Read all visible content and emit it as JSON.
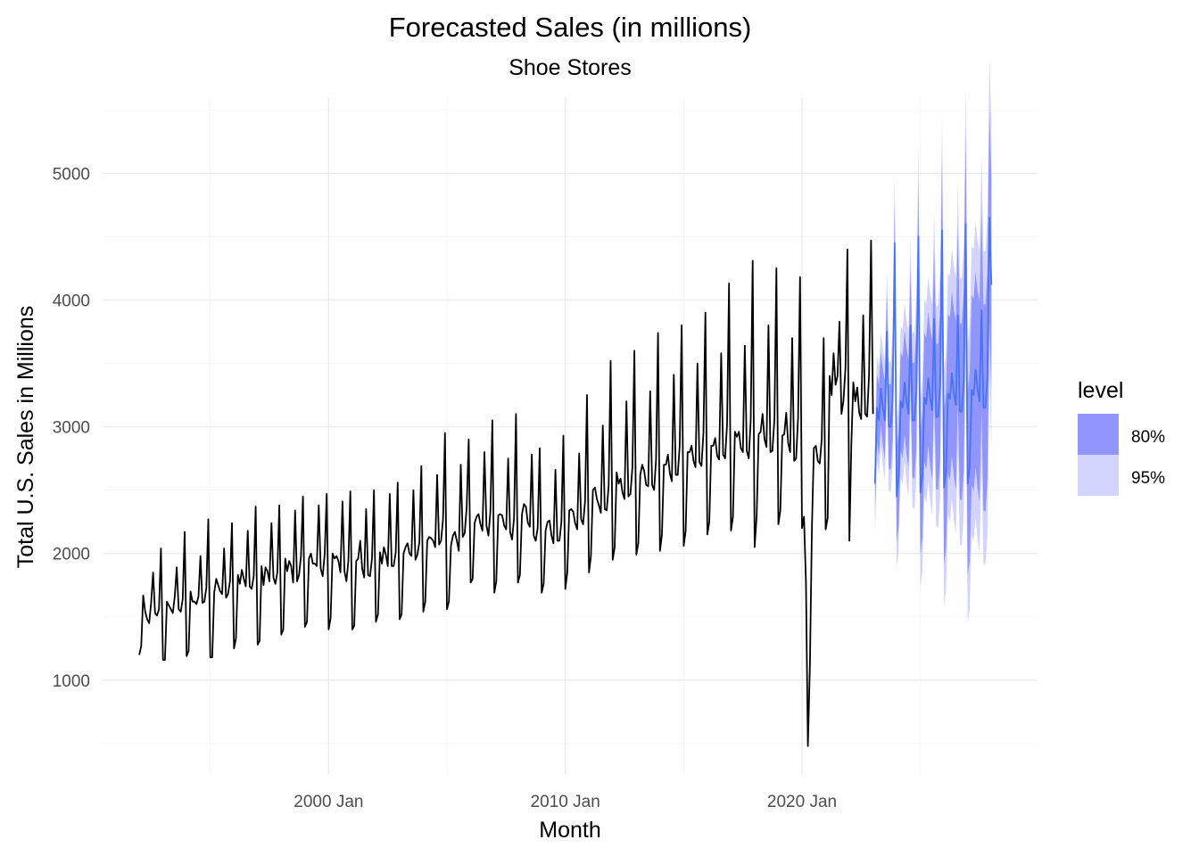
{
  "chart_data": {
    "type": "line",
    "title": "Forecasted Sales (in millions)",
    "subtitle": "Shoe Stores",
    "xlabel": "Month",
    "ylabel": "Total U.S. Sales in Millions",
    "x_ticks": [
      {
        "label": "2000 Jan",
        "year": 2000
      },
      {
        "label": "2010 Jan",
        "year": 2010
      },
      {
        "label": "2020 Jan",
        "year": 2020
      }
    ],
    "y_ticks": [
      1000,
      2000,
      3000,
      4000,
      5000
    ],
    "ylim": [
      260,
      5600
    ],
    "xlim_years": [
      1990.45,
      2029.95
    ],
    "grid": true,
    "legend": {
      "title": "level",
      "position": "right",
      "entries": [
        {
          "label": "80%",
          "color": "#9096fb"
        },
        {
          "label": "95%",
          "color": "#d3d4fd"
        }
      ]
    },
    "colors": {
      "observed": "#000000",
      "forecast_mean": "#4a72f4",
      "band_80": "#9096fb",
      "band_95": "#d3d4fd"
    },
    "observed": {
      "start": "1992 Jan",
      "frequency": "monthly",
      "by_year": [
        {
          "year": 1992,
          "values": [
            1200,
            1270,
            1670,
            1540,
            1480,
            1450,
            1610,
            1850,
            1530,
            1510,
            1560,
            2040
          ]
        },
        {
          "year": 1993,
          "values": [
            1160,
            1160,
            1620,
            1590,
            1560,
            1530,
            1660,
            1890,
            1560,
            1540,
            1640,
            2170
          ]
        },
        {
          "year": 1994,
          "values": [
            1190,
            1230,
            1700,
            1620,
            1620,
            1600,
            1660,
            1980,
            1610,
            1620,
            1730,
            2270
          ]
        },
        {
          "year": 1995,
          "values": [
            1180,
            1180,
            1690,
            1800,
            1750,
            1700,
            1680,
            2040,
            1650,
            1680,
            1780,
            2240
          ]
        },
        {
          "year": 1996,
          "values": [
            1250,
            1330,
            1830,
            1760,
            1870,
            1800,
            1740,
            2180,
            1740,
            1720,
            1820,
            2370
          ]
        },
        {
          "year": 1997,
          "values": [
            1280,
            1310,
            1900,
            1750,
            1890,
            1860,
            1780,
            2240,
            1810,
            1760,
            1850,
            2380
          ]
        },
        {
          "year": 1998,
          "values": [
            1360,
            1400,
            1960,
            1860,
            1940,
            1900,
            1770,
            2340,
            1780,
            1830,
            1980,
            2450
          ]
        },
        {
          "year": 1999,
          "values": [
            1420,
            1460,
            1960,
            2000,
            1920,
            1920,
            1900,
            2380,
            1880,
            1820,
            2000,
            2470
          ]
        },
        {
          "year": 2000,
          "values": [
            1400,
            1490,
            2000,
            1960,
            1980,
            1940,
            1850,
            2410,
            1860,
            1780,
            1940,
            2490
          ]
        },
        {
          "year": 2001,
          "values": [
            1400,
            1430,
            1940,
            1960,
            2100,
            1880,
            1810,
            2350,
            1830,
            1820,
            1960,
            2500
          ]
        },
        {
          "year": 2002,
          "values": [
            1460,
            1520,
            2010,
            1920,
            2050,
            1990,
            1900,
            2470,
            1900,
            1900,
            2010,
            2560
          ]
        },
        {
          "year": 2003,
          "values": [
            1480,
            1520,
            2000,
            2050,
            2080,
            2000,
            1980,
            2500,
            1950,
            1990,
            2090,
            2690
          ]
        },
        {
          "year": 2004,
          "values": [
            1540,
            1620,
            2100,
            2130,
            2120,
            2100,
            2050,
            2620,
            2070,
            2100,
            2270,
            2950
          ]
        },
        {
          "year": 2005,
          "values": [
            1560,
            1620,
            2060,
            2140,
            2170,
            2100,
            2020,
            2700,
            2130,
            2160,
            2360,
            2900
          ]
        },
        {
          "year": 2006,
          "values": [
            1770,
            1800,
            2240,
            2290,
            2310,
            2230,
            2180,
            2800,
            2220,
            2140,
            2330,
            3050
          ]
        },
        {
          "year": 2007,
          "values": [
            1690,
            1780,
            2300,
            2310,
            2300,
            2220,
            2190,
            2750,
            2170,
            2110,
            2280,
            3100
          ]
        },
        {
          "year": 2008,
          "values": [
            1770,
            1830,
            2310,
            2390,
            2370,
            2240,
            2210,
            2780,
            2140,
            2100,
            2200,
            2830
          ]
        },
        {
          "year": 2009,
          "values": [
            1690,
            1760,
            2180,
            2250,
            2260,
            2140,
            2080,
            2660,
            2100,
            2100,
            2250,
            2930
          ]
        },
        {
          "year": 2010,
          "values": [
            1720,
            1850,
            2340,
            2350,
            2330,
            2240,
            2190,
            2790,
            2270,
            2230,
            2410,
            3250
          ]
        },
        {
          "year": 2011,
          "values": [
            1850,
            1980,
            2500,
            2520,
            2430,
            2380,
            2320,
            3010,
            2350,
            2340,
            2540,
            3520
          ]
        },
        {
          "year": 2012,
          "values": [
            1950,
            2050,
            2640,
            2550,
            2590,
            2480,
            2430,
            3200,
            2450,
            2470,
            2680,
            3600
          ]
        },
        {
          "year": 2013,
          "values": [
            1990,
            2080,
            2620,
            2700,
            2650,
            2540,
            2530,
            3280,
            2540,
            2500,
            2740,
            3740
          ]
        },
        {
          "year": 2014,
          "values": [
            2020,
            2150,
            2700,
            2700,
            2780,
            2630,
            2570,
            3410,
            2620,
            2620,
            2850,
            3800
          ]
        },
        {
          "year": 2015,
          "values": [
            2060,
            2180,
            2800,
            2800,
            2850,
            2730,
            2680,
            3500,
            2720,
            2690,
            2950,
            3900
          ]
        },
        {
          "year": 2016,
          "values": [
            2150,
            2250,
            2850,
            2850,
            2910,
            2770,
            2740,
            3580,
            2780,
            2750,
            3020,
            4130
          ]
        },
        {
          "year": 2017,
          "values": [
            2180,
            2290,
            2960,
            2920,
            2960,
            2830,
            2800,
            3640,
            2810,
            2750,
            3050,
            4310
          ]
        },
        {
          "year": 2018,
          "values": [
            2050,
            2300,
            2940,
            2960,
            3100,
            2900,
            2840,
            3800,
            2800,
            2810,
            3060,
            4250
          ]
        },
        {
          "year": 2019,
          "values": [
            2230,
            2340,
            2930,
            2940,
            3110,
            2870,
            2800,
            3700,
            2730,
            2750,
            3070,
            4180
          ]
        },
        {
          "year": 2020,
          "values": [
            2200,
            2290,
            1780,
            480,
            1130,
            2200,
            2830,
            2850,
            2730,
            2710,
            2900,
            3700
          ]
        },
        {
          "year": 2021,
          "values": [
            2190,
            2280,
            3400,
            3250,
            3580,
            3330,
            3400,
            3830,
            3100,
            3200,
            3460,
            4400
          ]
        },
        {
          "year": 2022,
          "values": [
            2100,
            2860,
            3350,
            3200,
            3310,
            3110,
            3060,
            3880,
            3100,
            3080,
            3420,
            4470
          ]
        },
        {
          "year": 2023,
          "values": [
            3100
          ]
        }
      ]
    },
    "forecast": {
      "start": "2023 Feb",
      "frequency": "monthly",
      "by_year": [
        {
          "year": 2023,
          "mean": [
            2550,
            3150,
            3050,
            3300,
            3150,
            3050,
            3750,
            3000,
            3000,
            3250,
            4450
          ],
          "pi80_halfwidth": [
            260,
            270,
            280,
            290,
            300,
            310,
            320,
            330,
            340,
            350,
            360
          ],
          "pi95_halfwidth": [
            400,
            415,
            430,
            445,
            460,
            475,
            490,
            505,
            520,
            535,
            550
          ]
        },
        {
          "year": 2024,
          "mean": [
            2450,
            2600,
            3200,
            3150,
            3350,
            3200,
            3100,
            3800,
            3050,
            3050,
            3300,
            4500
          ],
          "pi80_halfwidth": [
            370,
            380,
            390,
            400,
            410,
            420,
            430,
            440,
            450,
            460,
            470,
            480
          ],
          "pi95_halfwidth": [
            565,
            580,
            595,
            610,
            625,
            640,
            655,
            670,
            685,
            700,
            715,
            730
          ]
        },
        {
          "year": 2025,
          "mean": [
            2480,
            2620,
            3230,
            3180,
            3380,
            3230,
            3130,
            3850,
            3080,
            3080,
            3330,
            4550
          ],
          "pi80_halfwidth": [
            490,
            500,
            510,
            520,
            530,
            540,
            550,
            560,
            570,
            580,
            590,
            600
          ],
          "pi95_halfwidth": [
            745,
            760,
            775,
            790,
            805,
            820,
            835,
            850,
            865,
            880,
            895,
            910
          ]
        },
        {
          "year": 2026,
          "mean": [
            2520,
            2650,
            3260,
            3220,
            3420,
            3260,
            3170,
            3880,
            3120,
            3120,
            3370,
            4600
          ],
          "pi80_halfwidth": [
            610,
            620,
            630,
            640,
            650,
            660,
            670,
            680,
            690,
            700,
            710,
            720
          ],
          "pi95_halfwidth": [
            925,
            940,
            955,
            970,
            985,
            1000,
            1015,
            1030,
            1045,
            1060,
            1075,
            1090
          ]
        },
        {
          "year": 2027,
          "mean": [
            2550,
            2680,
            3290,
            3250,
            3450,
            3290,
            3200,
            3920,
            3150,
            3150,
            3400,
            4650
          ],
          "pi80_halfwidth": [
            730,
            740,
            750,
            760,
            770,
            780,
            790,
            800,
            810,
            820,
            830,
            840
          ],
          "pi95_halfwidth": [
            1105,
            1120,
            1135,
            1150,
            1165,
            1180,
            1195,
            1210,
            1225,
            1240,
            1255,
            1270
          ]
        },
        {
          "year": 2028,
          "mean": [
            4120
          ],
          "pi80_halfwidth": [
            850
          ],
          "pi95_halfwidth": [
            1285
          ]
        }
      ]
    }
  }
}
